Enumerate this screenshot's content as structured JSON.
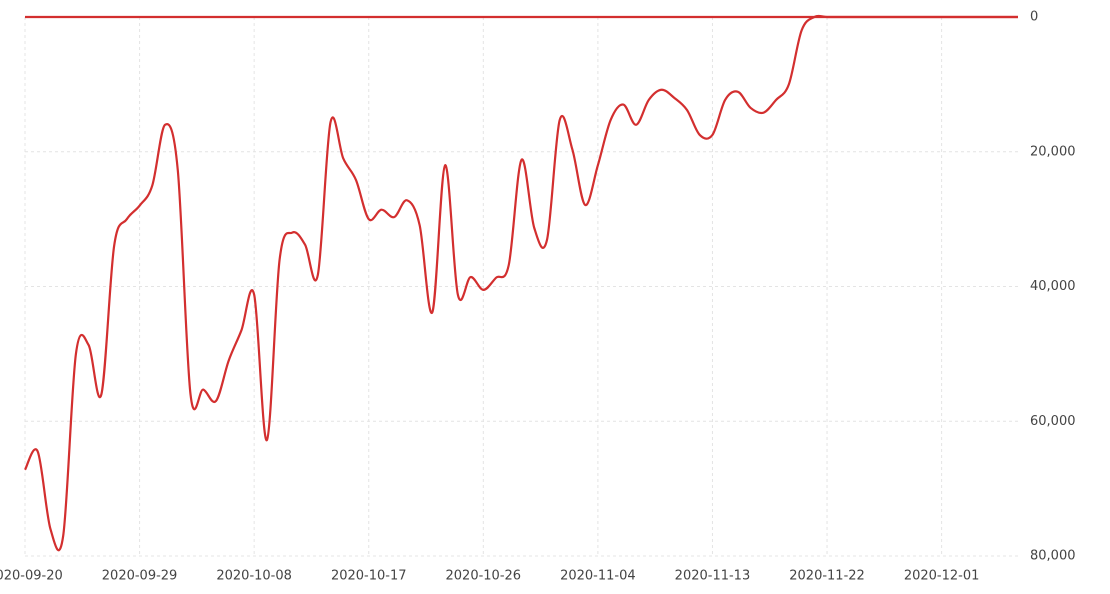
{
  "chart_data": {
    "type": "line",
    "x": [
      "2020-09-20",
      "2020-09-21",
      "2020-09-22",
      "2020-09-23",
      "2020-09-24",
      "2020-09-25",
      "2020-09-26",
      "2020-09-27",
      "2020-09-28",
      "2020-09-29",
      "2020-09-30",
      "2020-10-01",
      "2020-10-02",
      "2020-10-03",
      "2020-10-04",
      "2020-10-05",
      "2020-10-06",
      "2020-10-07",
      "2020-10-08",
      "2020-10-09",
      "2020-10-10",
      "2020-10-11",
      "2020-10-12",
      "2020-10-13",
      "2020-10-14",
      "2020-10-15",
      "2020-10-16",
      "2020-10-17",
      "2020-10-18",
      "2020-10-19",
      "2020-10-20",
      "2020-10-21",
      "2020-10-22",
      "2020-10-23",
      "2020-10-24",
      "2020-10-25",
      "2020-10-26",
      "2020-10-27",
      "2020-10-28",
      "2020-10-29",
      "2020-10-30",
      "2020-10-31",
      "2020-11-01",
      "2020-11-02",
      "2020-11-03",
      "2020-11-04",
      "2020-11-05",
      "2020-11-06",
      "2020-11-07",
      "2020-11-08",
      "2020-11-09",
      "2020-11-10",
      "2020-11-11",
      "2020-11-12",
      "2020-11-13",
      "2020-11-14",
      "2020-11-15",
      "2020-11-16",
      "2020-11-17",
      "2020-11-18",
      "2020-11-19",
      "2020-11-20",
      "2020-11-21",
      "2020-11-22",
      "2020-11-23",
      "2020-11-24",
      "2020-11-25",
      "2020-11-26",
      "2020-11-27",
      "2020-11-28",
      "2020-11-29",
      "2020-11-30",
      "2020-12-01",
      "2020-12-02",
      "2020-12-03",
      "2020-12-04",
      "2020-12-05",
      "2020-12-06",
      "2020-12-07"
    ],
    "series": [
      {
        "color": "#d32f2f",
        "values": [
          67200,
          64500,
          76000,
          77000,
          50000,
          48700,
          56000,
          34000,
          30000,
          28000,
          25000,
          16000,
          22700,
          56000,
          55300,
          57000,
          51000,
          46500,
          41200,
          62800,
          36000,
          32000,
          33800,
          38300,
          15600,
          21000,
          24200,
          30000,
          28600,
          29700,
          27200,
          30900,
          43800,
          22000,
          41200,
          38600,
          40500,
          38700,
          36800,
          21200,
          31300,
          33100,
          15300,
          19700,
          27900,
          22000,
          15300,
          13000,
          16000,
          12300,
          10800,
          12000,
          13800,
          17500,
          17500,
          12300,
          11100,
          13500,
          14200,
          12300,
          10000,
          2000,
          0,
          0,
          0,
          0,
          0,
          0,
          0,
          0,
          0,
          0,
          0,
          0,
          0,
          0,
          0,
          0,
          0
        ]
      },
      {
        "color": "#d32f2f",
        "values": [
          0,
          0,
          0,
          0,
          0,
          0,
          0,
          0,
          0,
          0,
          0,
          0,
          0,
          0,
          0,
          0,
          0,
          0,
          0,
          0,
          0,
          0,
          0,
          0,
          0,
          0,
          0,
          0,
          0,
          0,
          0,
          0,
          0,
          0,
          0,
          0,
          0,
          0,
          0,
          0,
          0,
          0,
          0,
          0,
          0,
          0,
          0,
          0,
          0,
          0,
          0,
          0,
          0,
          0,
          0,
          0,
          0,
          0,
          0,
          0,
          0,
          0,
          0,
          0,
          0,
          0,
          0,
          0,
          0,
          0,
          0,
          0,
          0,
          0,
          0,
          0,
          0,
          0,
          0
        ]
      }
    ],
    "xticks": [
      "2020-09-20",
      "2020-09-29",
      "2020-10-08",
      "2020-10-17",
      "2020-10-26",
      "2020-11-04",
      "2020-11-13",
      "2020-11-22",
      "2020-12-01"
    ],
    "ylim": [
      0,
      80000
    ],
    "yticks": [
      0,
      {
        "value": 20000,
        "label": "20,000"
      },
      {
        "value": 40000,
        "label": "40,000"
      },
      {
        "value": 60000,
        "label": "60,000"
      },
      {
        "value": 80000,
        "label": "80,000"
      }
    ],
    "y_inverted": true,
    "y_axis_side": "right",
    "grid": true
  }
}
